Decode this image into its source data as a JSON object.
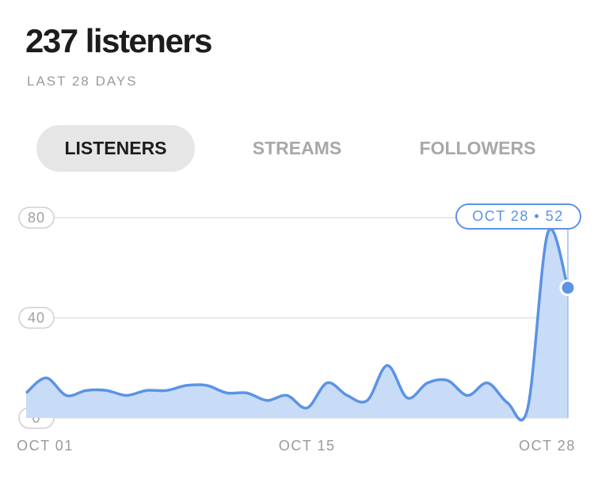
{
  "header": {
    "title": "237 listeners",
    "subtitle": "LAST 28 DAYS"
  },
  "tabs": [
    "LISTENERS",
    "STREAMS",
    "FOLLOWERS"
  ],
  "chart_data": {
    "type": "area",
    "categories": [
      "OCT 01",
      null,
      null,
      null,
      null,
      null,
      null,
      null,
      null,
      null,
      null,
      null,
      null,
      null,
      "OCT 15",
      null,
      null,
      null,
      null,
      null,
      null,
      null,
      null,
      null,
      null,
      null,
      null,
      "OCT 28"
    ],
    "values": [
      10,
      16,
      9,
      11,
      11,
      9,
      11,
      11,
      13,
      13,
      10,
      10,
      7,
      9,
      4,
      14,
      9,
      7,
      21,
      8,
      14,
      15,
      9,
      14,
      6,
      4,
      74,
      52
    ],
    "color": "#5b93e5",
    "fill": "#c9dcf7",
    "ylim": [
      0,
      80
    ],
    "yticks": [
      0,
      40,
      80
    ],
    "grid": true,
    "annotation": "OCT 28 • 52"
  }
}
